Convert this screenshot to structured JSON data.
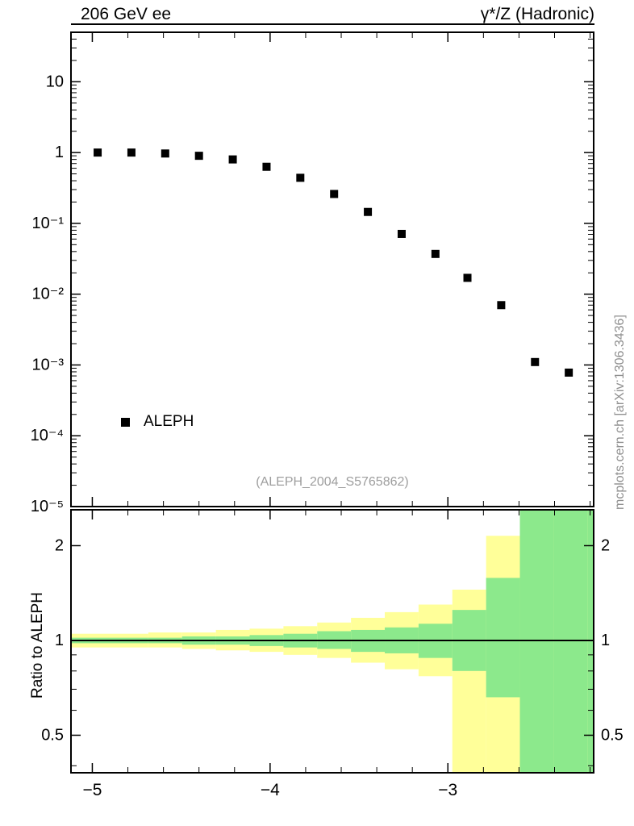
{
  "header": {
    "title_left": "206 GeV ee",
    "title_right": "γ*/Z (Hadronic)"
  },
  "main_plot": {
    "legend": {
      "label": "ALEPH",
      "marker": "filled-square-icon",
      "marker_color": "#000000"
    },
    "watermark": "(ALEPH_2004_S5765862)",
    "side_credit": "mcplots.cern.ch [arXiv:1306.3436]"
  },
  "ratio_plot": {
    "ylabel": "Ratio to ALEPH"
  },
  "chart_data": [
    {
      "type": "scatter",
      "title": "206 GeV ee",
      "subtitle": "γ*/Z (Hadronic)",
      "legend_position": "lower-left",
      "grid": false,
      "xlim": [
        -5.12,
        -2.18
      ],
      "ylim": [
        1e-05,
        50
      ],
      "yscale": "log",
      "xticks": [
        -5,
        -4,
        -3
      ],
      "xtick_labels": [
        "−5",
        "−4",
        "−3"
      ],
      "xminor_step": 0.2,
      "ytick_values": [
        10,
        1,
        0.1,
        0.01,
        0.001,
        0.0001,
        1e-05
      ],
      "ytick_labels": [
        "10",
        "1",
        "10⁻¹",
        "10⁻²",
        "10⁻³",
        "10⁻⁴",
        "10⁻⁵"
      ],
      "series": [
        {
          "name": "ALEPH",
          "marker": "square",
          "color": "#000000",
          "x": [
            -4.97,
            -4.78,
            -4.59,
            -4.4,
            -4.21,
            -4.02,
            -3.83,
            -3.64,
            -3.45,
            -3.26,
            -3.07,
            -2.89,
            -2.7,
            -2.51,
            -2.32
          ],
          "y": [
            1.0,
            1.0,
            0.97,
            0.9,
            0.8,
            0.63,
            0.44,
            0.26,
            0.145,
            0.071,
            0.037,
            0.017,
            0.007,
            0.0011,
            0.00078
          ]
        }
      ]
    },
    {
      "type": "area",
      "ylabel": "Ratio to ALEPH",
      "grid": false,
      "xlim": [
        -5.12,
        -2.18
      ],
      "ylim": [
        0.38,
        2.6
      ],
      "yscale": "log",
      "xticks": [
        -5,
        -4,
        -3
      ],
      "xtick_labels": [
        "−5",
        "−4",
        "−3"
      ],
      "xminor_step": 0.2,
      "yticks": [
        2,
        1,
        0.5
      ],
      "ytick_labels": [
        "2",
        "1",
        "0.5"
      ],
      "yminor_ticks": [
        0.4,
        0.6,
        0.7,
        0.8,
        0.9
      ],
      "reference_line": 1,
      "band_colors": {
        "outer": "#ffff99",
        "inner": "#8ce98c"
      },
      "bins": [
        {
          "x1": -5.12,
          "x2": -4.875,
          "yellow": [
            0.95,
            1.05
          ],
          "green": [
            0.98,
            1.02
          ]
        },
        {
          "x1": -4.875,
          "x2": -4.685,
          "yellow": [
            0.95,
            1.05
          ],
          "green": [
            0.98,
            1.02
          ]
        },
        {
          "x1": -4.685,
          "x2": -4.495,
          "yellow": [
            0.95,
            1.06
          ],
          "green": [
            0.98,
            1.02
          ]
        },
        {
          "x1": -4.495,
          "x2": -4.305,
          "yellow": [
            0.94,
            1.06
          ],
          "green": [
            0.97,
            1.03
          ]
        },
        {
          "x1": -4.305,
          "x2": -4.115,
          "yellow": [
            0.93,
            1.08
          ],
          "green": [
            0.97,
            1.03
          ]
        },
        {
          "x1": -4.115,
          "x2": -3.925,
          "yellow": [
            0.92,
            1.09
          ],
          "green": [
            0.96,
            1.04
          ]
        },
        {
          "x1": -3.925,
          "x2": -3.735,
          "yellow": [
            0.9,
            1.11
          ],
          "green": [
            0.95,
            1.05
          ]
        },
        {
          "x1": -3.735,
          "x2": -3.545,
          "yellow": [
            0.88,
            1.14
          ],
          "green": [
            0.94,
            1.07
          ]
        },
        {
          "x1": -3.545,
          "x2": -3.355,
          "yellow": [
            0.85,
            1.18
          ],
          "green": [
            0.92,
            1.08
          ]
        },
        {
          "x1": -3.355,
          "x2": -3.165,
          "yellow": [
            0.81,
            1.23
          ],
          "green": [
            0.91,
            1.1
          ]
        },
        {
          "x1": -3.165,
          "x2": -2.975,
          "yellow": [
            0.77,
            1.3
          ],
          "green": [
            0.88,
            1.13
          ]
        },
        {
          "x1": -2.975,
          "x2": -2.785,
          "yellow": [
            0.38,
            1.45
          ],
          "green": [
            0.8,
            1.25
          ]
        },
        {
          "x1": -2.785,
          "x2": -2.595,
          "yellow": [
            0.38,
            2.15
          ],
          "green": [
            0.66,
            1.58
          ]
        },
        {
          "x1": -2.595,
          "x2": -2.405,
          "yellow": [
            0.38,
            2.6
          ],
          "green": [
            0.38,
            2.6
          ]
        },
        {
          "x1": -2.405,
          "x2": -2.215,
          "yellow": [
            0.38,
            2.6
          ],
          "green": [
            0.38,
            2.6
          ]
        },
        {
          "x1": -2.215,
          "x2": -2.18,
          "yellow": [
            0.38,
            2.6
          ],
          "green": [
            0.38,
            2.6
          ]
        }
      ]
    }
  ]
}
